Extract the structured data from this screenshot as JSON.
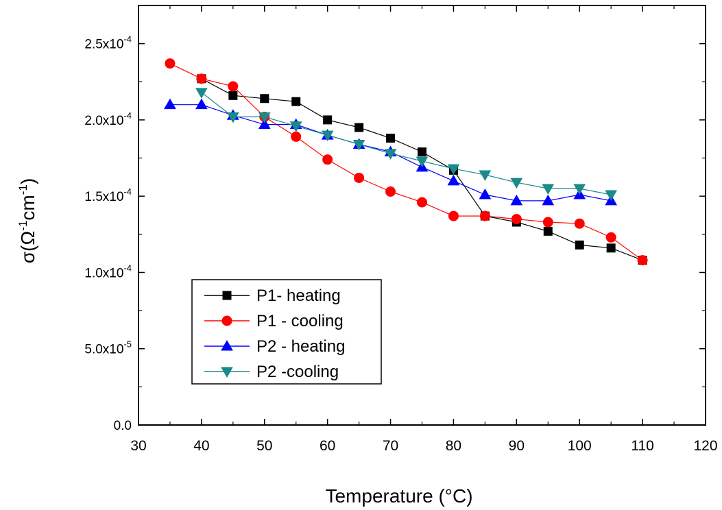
{
  "chart_data": {
    "type": "line",
    "xlabel": "Temperature (°C)",
    "ylabel": "σ(Ω",
    "xlim": [
      30,
      120
    ],
    "ylim": [
      0,
      0.000275
    ],
    "x_ticks": [
      30,
      40,
      50,
      60,
      70,
      80,
      90,
      100,
      110,
      120
    ],
    "x_tick_labels": [
      "30",
      "40",
      "50",
      "60",
      "70",
      "80",
      "90",
      "100",
      "110",
      "120"
    ],
    "y_ticks": [
      0,
      5e-05,
      0.0001,
      0.00015,
      0.0002,
      0.00025
    ],
    "y_tick_labels": [
      {
        "mant": "0.0",
        "exp": ""
      },
      {
        "mant": "5.0x10",
        "exp": "-5"
      },
      {
        "mant": "1.0x10",
        "exp": "-4"
      },
      {
        "mant": "1.5x10",
        "exp": "-4"
      },
      {
        "mant": "2.0x10",
        "exp": "-4"
      },
      {
        "mant": "2.5x10",
        "exp": "-4"
      }
    ],
    "grid": false,
    "legend_position": "bottom-left",
    "series": [
      {
        "name": "P1- heating",
        "color": "#000000",
        "marker": "square",
        "x": [
          40,
          45,
          50,
          55,
          60,
          65,
          70,
          75,
          80,
          85,
          90,
          95,
          100,
          105,
          110
        ],
        "y": [
          0.000227,
          0.000216,
          0.000214,
          0.000212,
          0.0002,
          0.000195,
          0.000188,
          0.000179,
          0.000167,
          0.000137,
          0.000133,
          0.000127,
          0.000118,
          0.000116,
          0.000108
        ]
      },
      {
        "name": "P1 - cooling",
        "color": "#ff0000",
        "marker": "circle",
        "x": [
          35,
          40,
          45,
          50,
          55,
          60,
          65,
          70,
          75,
          80,
          85,
          90,
          95,
          100,
          105,
          110
        ],
        "y": [
          0.000237,
          0.000227,
          0.000222,
          0.000202,
          0.000189,
          0.000174,
          0.000162,
          0.000153,
          0.000146,
          0.000137,
          0.000137,
          0.000135,
          0.000133,
          0.000132,
          0.000123,
          0.000108
        ]
      },
      {
        "name": "P2 - heating",
        "color": "#0000ff",
        "marker": "triangle-up",
        "x": [
          35,
          40,
          45,
          50,
          55,
          60,
          65,
          70,
          75,
          80,
          85,
          90,
          95,
          100,
          105
        ],
        "y": [
          0.00021,
          0.00021,
          0.000203,
          0.000197,
          0.000197,
          0.00019,
          0.000184,
          0.000179,
          0.000169,
          0.00016,
          0.000151,
          0.000147,
          0.000147,
          0.000151,
          0.000147
        ]
      },
      {
        "name": "P2 -cooling",
        "color": "#1a8a8a",
        "marker": "triangle-down",
        "x": [
          40,
          45,
          50,
          55,
          60,
          65,
          70,
          75,
          80,
          85,
          90,
          95,
          100,
          105
        ],
        "y": [
          0.000218,
          0.000202,
          0.000202,
          0.000196,
          0.00019,
          0.000184,
          0.000178,
          0.000173,
          0.000168,
          0.000164,
          0.000159,
          0.000155,
          0.000155,
          0.000151
        ]
      }
    ]
  }
}
